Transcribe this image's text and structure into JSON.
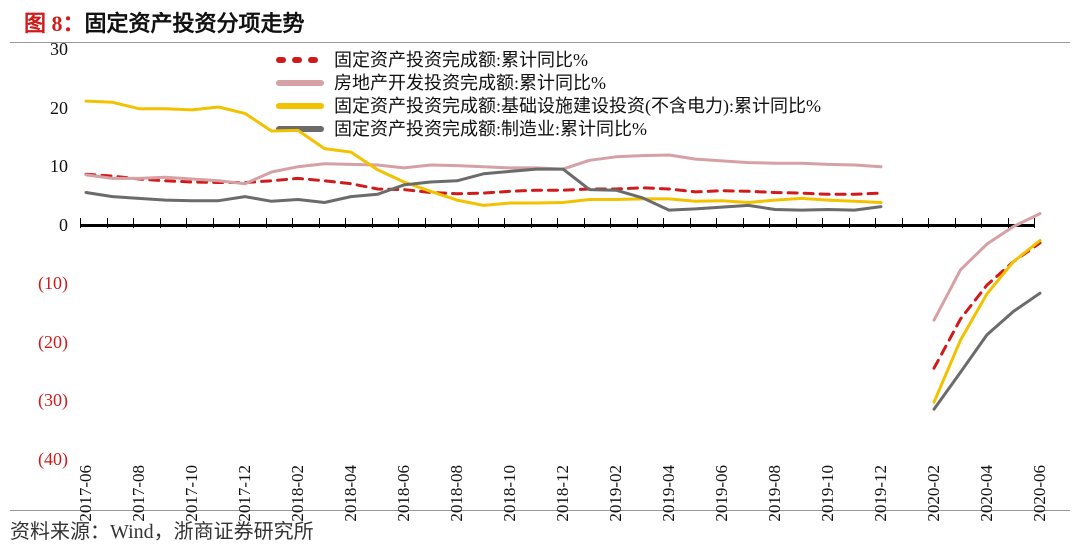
{
  "title_prefix": "图 8：",
  "title_text": "固定资产投资分项走势",
  "source": "资料来源：Wind，浙商证券研究所",
  "chart": {
    "type": "line",
    "ylim": [
      -40,
      30
    ],
    "ytick_step": 10,
    "yticks_positive_color": "#000000",
    "yticks_negative_color": "#cf1b1b",
    "negative_tick_paren": true,
    "axis_fontsize": 18,
    "title_fontsize": 22,
    "zero_line_color": "#000000",
    "zero_line_width": 3,
    "background_color": "#ffffff",
    "x_categories": [
      "2017-06",
      "2017-07",
      "2017-08",
      "2017-09",
      "2017-10",
      "2017-11",
      "2017-12",
      "2018-01",
      "2018-02",
      "2018-03",
      "2018-04",
      "2018-05",
      "2018-06",
      "2018-07",
      "2018-08",
      "2018-09",
      "2018-10",
      "2018-11",
      "2018-12",
      "2019-01",
      "2019-02",
      "2019-03",
      "2019-04",
      "2019-05",
      "2019-06",
      "2019-07",
      "2019-08",
      "2019-09",
      "2019-10",
      "2019-11",
      "2019-12",
      "2020-01",
      "2020-02",
      "2020-03",
      "2020-04",
      "2020-05",
      "2020-06"
    ],
    "x_labels_shown": [
      "2017-06",
      "2017-08",
      "2017-10",
      "2017-12",
      "2018-02",
      "2018-04",
      "2018-06",
      "2018-08",
      "2018-10",
      "2018-12",
      "2019-02",
      "2019-04",
      "2019-06",
      "2019-08",
      "2019-10",
      "2019-12",
      "2020-02",
      "2020-04",
      "2020-06"
    ],
    "legend": {
      "position": "top-center",
      "fontsize": 18,
      "items": [
        {
          "key": "total",
          "label": "固定资产投资完成额:累计同比%",
          "color": "#cf1b1b",
          "style": "dash",
          "width": 3
        },
        {
          "key": "real_estate",
          "label": "房地产开发投资完成额:累计同比%",
          "color": "#d6a1a5",
          "style": "solid",
          "width": 3
        },
        {
          "key": "infra",
          "label": "固定资产投资完成额:基础设施建设投资(不含电力):累计同比%",
          "color": "#f2c200",
          "style": "solid",
          "width": 3
        },
        {
          "key": "mfg",
          "label": "固定资产投资完成额:制造业:累计同比%",
          "color": "#6b6b6b",
          "style": "solid",
          "width": 3
        }
      ]
    },
    "series": {
      "total": [
        8.6,
        8.3,
        7.8,
        7.5,
        7.3,
        7.2,
        7.2,
        7.5,
        7.9,
        7.5,
        7.0,
        6.1,
        6.0,
        5.5,
        5.3,
        5.4,
        5.7,
        5.9,
        5.9,
        6.1,
        6.1,
        6.3,
        6.1,
        5.6,
        5.8,
        5.7,
        5.5,
        5.4,
        5.2,
        5.2,
        5.4,
        null,
        -24.5,
        -16.1,
        -10.3,
        -6.3,
        -3.1
      ],
      "real_estate": [
        8.5,
        7.9,
        7.9,
        8.1,
        7.8,
        7.5,
        7.0,
        9.0,
        9.9,
        10.4,
        10.3,
        10.2,
        9.7,
        10.2,
        10.1,
        9.9,
        9.7,
        9.7,
        9.5,
        11.0,
        11.6,
        11.8,
        11.9,
        11.2,
        10.9,
        10.6,
        10.5,
        10.5,
        10.3,
        10.2,
        9.9,
        null,
        -16.3,
        -7.7,
        -3.3,
        -0.3,
        1.9
      ],
      "infra": [
        21.1,
        20.9,
        19.8,
        19.8,
        19.6,
        20.1,
        19.0,
        16.0,
        16.1,
        13.0,
        12.4,
        9.4,
        7.3,
        5.7,
        4.2,
        3.3,
        3.7,
        3.7,
        3.8,
        4.3,
        4.3,
        4.4,
        4.4,
        4.0,
        4.1,
        3.8,
        4.2,
        4.5,
        4.2,
        4.0,
        3.8,
        null,
        -30.3,
        -19.7,
        -11.8,
        -6.3,
        -2.7
      ],
      "mfg": [
        5.5,
        4.8,
        4.5,
        4.2,
        4.1,
        4.1,
        4.8,
        4.0,
        4.3,
        3.8,
        4.8,
        5.2,
        6.8,
        7.3,
        7.5,
        8.7,
        9.1,
        9.5,
        9.5,
        6.0,
        5.9,
        4.6,
        2.5,
        2.7,
        3.0,
        3.3,
        2.6,
        2.5,
        2.6,
        2.5,
        3.1,
        null,
        -31.5,
        -25.2,
        -18.8,
        -14.8,
        -11.7
      ]
    },
    "line_width": 3,
    "dash_pattern": [
      9,
      7
    ]
  }
}
